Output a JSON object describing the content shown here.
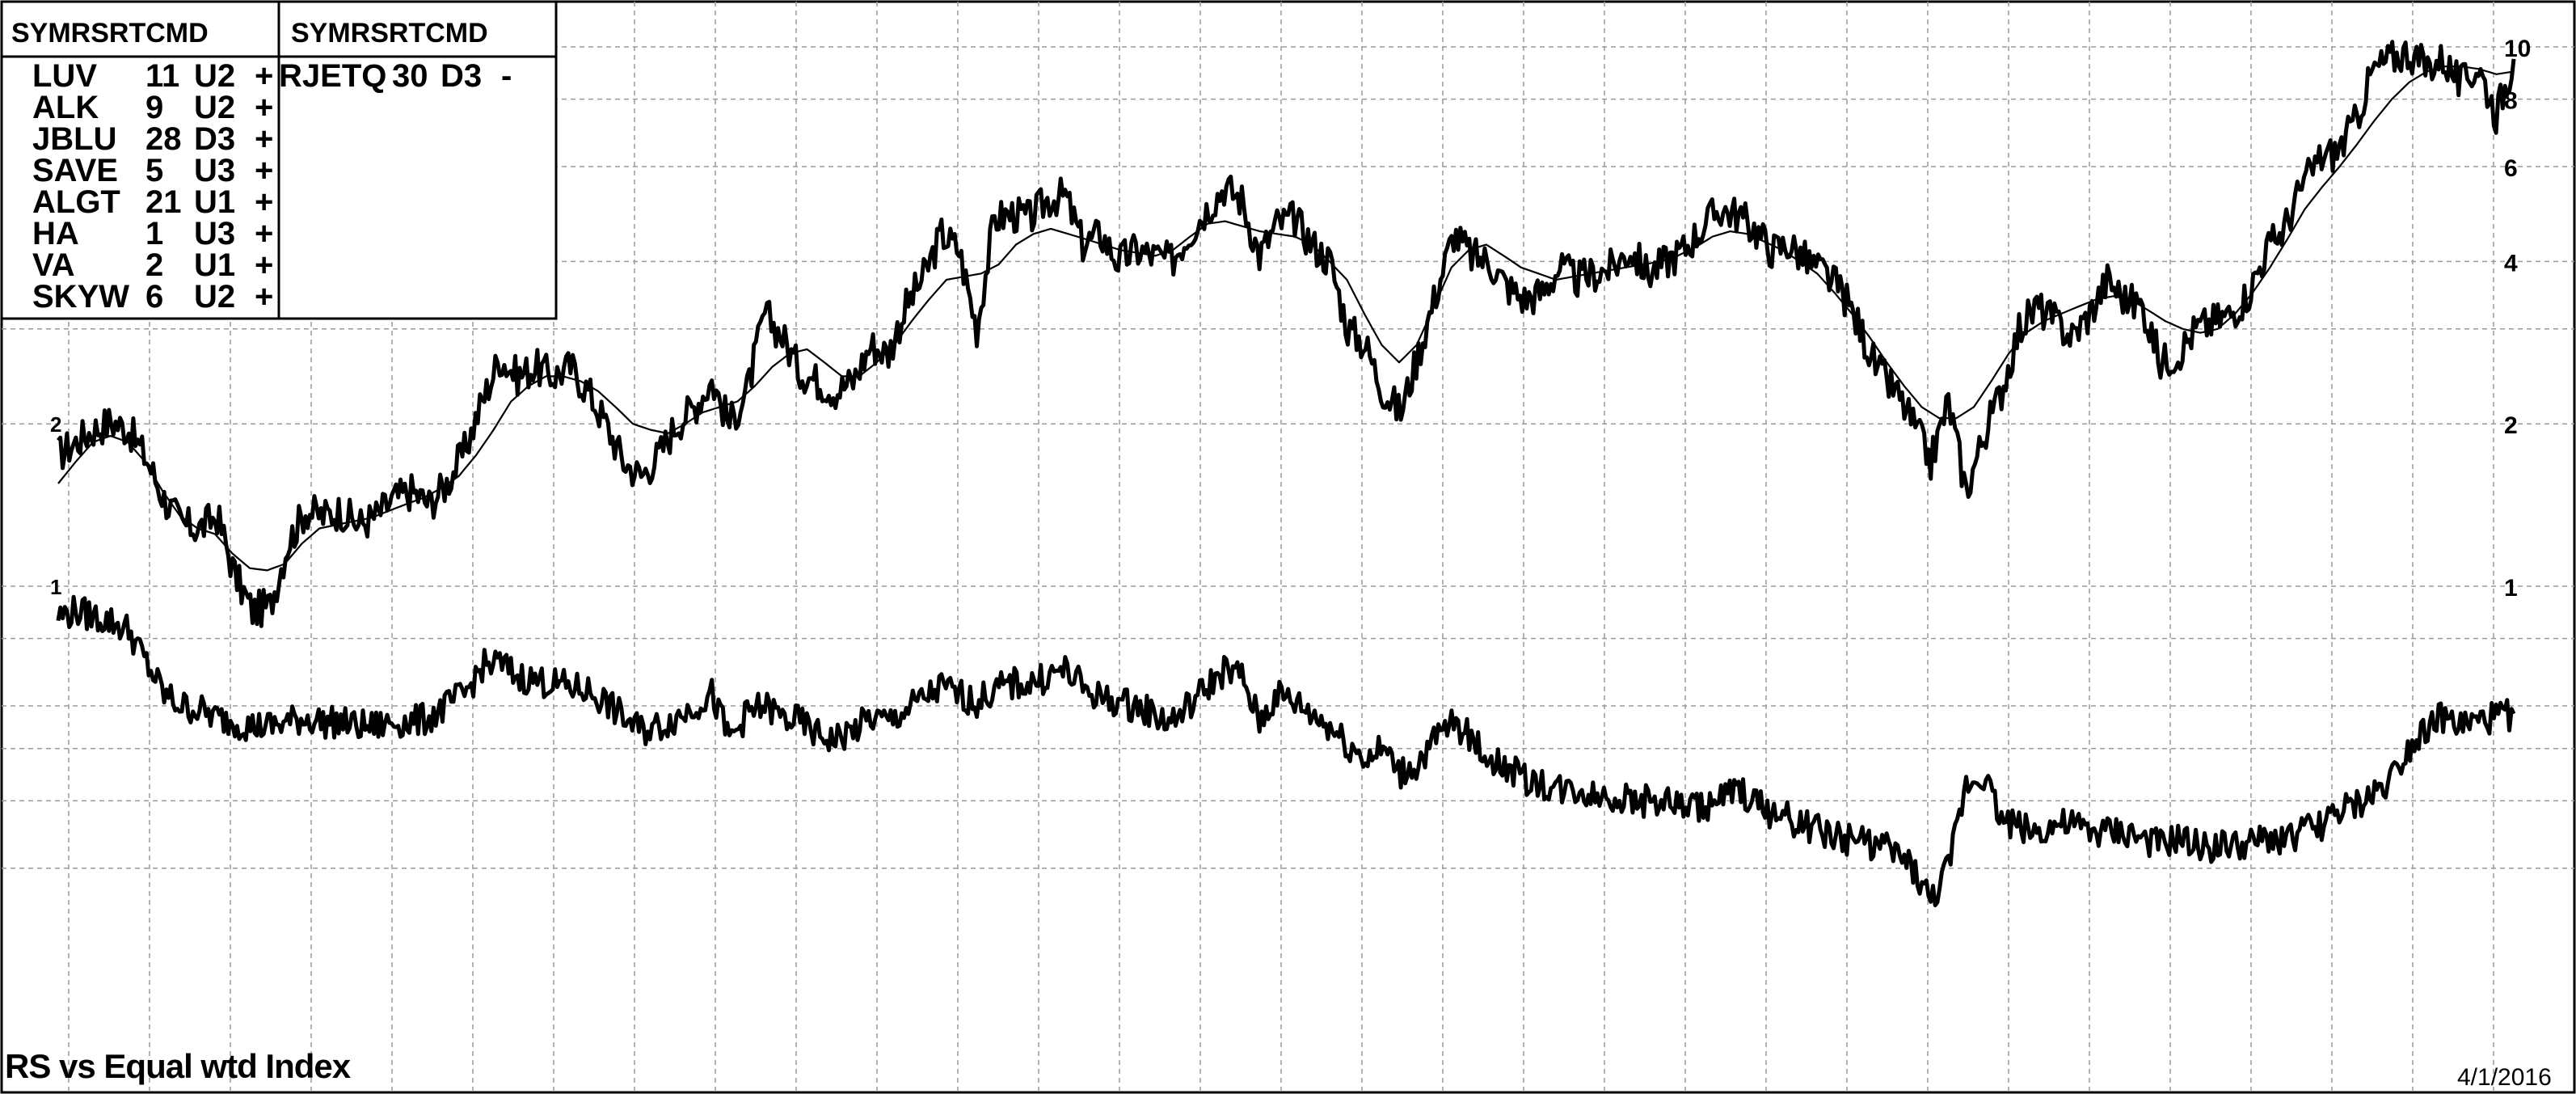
{
  "table": {
    "left_header": "SYMRSRTCMD",
    "right_header": "SYMRSRTCMD",
    "left_rows": [
      {
        "sym": "LUV",
        "rs": "11",
        "rt": "U2",
        "cmd": "+"
      },
      {
        "sym": "ALK",
        "rs": "9",
        "rt": "U2",
        "cmd": "+"
      },
      {
        "sym": "JBLU",
        "rs": "28",
        "rt": "D3",
        "cmd": "+"
      },
      {
        "sym": "SAVE",
        "rs": "5",
        "rt": "U3",
        "cmd": "+"
      },
      {
        "sym": "ALGT",
        "rs": "21",
        "rt": "U1",
        "cmd": "+"
      },
      {
        "sym": "HA",
        "rs": "1",
        "rt": "U3",
        "cmd": "+"
      },
      {
        "sym": "VA",
        "rs": "2",
        "rt": "U1",
        "cmd": "+"
      },
      {
        "sym": "SKYW",
        "rs": "6",
        "rt": "U2",
        "cmd": "+"
      }
    ],
    "right_rows": [
      {
        "sym": "RJETQ",
        "rs": "30",
        "rt": "D3",
        "cmd": "-"
      }
    ]
  },
  "footer": {
    "title": "RS vs Equal wtd Index",
    "date": "4/1/2016"
  },
  "chart_data": {
    "type": "line",
    "y_scale": "log",
    "grid": true,
    "right_axis_ticks": [
      "10",
      "8",
      "6",
      "4",
      "2",
      "1"
    ],
    "left_axis_ticks": [
      "2",
      "1"
    ],
    "end_date": "4/1/2016",
    "series": [
      {
        "values": [
          1.75,
          1.85,
          1.95,
          2.02,
          1.95,
          1.72,
          1.45,
          1.3,
          1.28,
          1.35,
          1.05,
          0.9,
          0.92,
          1.2,
          1.38,
          1.35,
          1.38,
          1.3,
          1.35,
          1.45,
          1.5,
          1.42,
          1.55,
          1.78,
          2.2,
          2.65,
          2.45,
          2.55,
          2.45,
          2.55,
          2.3,
          2.0,
          1.7,
          1.6,
          1.75,
          2.0,
          2.15,
          2.4,
          2.0,
          2.3,
          3.2,
          2.9,
          2.5,
          2.4,
          2.3,
          2.4,
          2.8,
          2.7,
          3.3,
          3.75,
          4.5,
          4.2,
          3.0,
          4.8,
          4.9,
          4.8,
          5.2,
          5.3,
          4.3,
          4.5,
          4.0,
          4.2,
          4.1,
          4.0,
          4.5,
          5.0,
          5.5,
          5.2,
          4.1,
          4.7,
          4.8,
          4.3,
          4.0,
          3.0,
          2.8,
          2.3,
          2.1,
          2.7,
          3.5,
          4.5,
          4.1,
          4.0,
          3.6,
          3.4,
          3.5,
          3.9,
          3.7,
          3.8,
          3.9,
          4.2,
          3.8,
          4.0,
          4.2,
          4.6,
          5.0,
          4.9,
          4.6,
          4.2,
          4.3,
          4.0,
          3.8,
          3.5,
          3.0,
          2.5,
          2.3,
          2.0,
          1.7,
          2.2,
          1.5,
          1.9,
          2.3,
          3.0,
          3.3,
          3.1,
          2.9,
          3.2,
          3.7,
          3.4,
          3.3,
          2.6,
          2.7,
          3.0,
          3.1,
          3.2,
          3.5,
          4.2,
          4.6,
          5.5,
          6.2,
          6.4,
          7.2,
          9.0,
          9.5,
          9.8,
          9.2,
          9.5,
          8.5,
          9.2,
          7.5,
          9.5
        ]
      },
      {
        "values": [
          1.55,
          1.7,
          1.85,
          1.9,
          1.85,
          1.7,
          1.5,
          1.35,
          1.28,
          1.25,
          1.15,
          1.08,
          1.07,
          1.1,
          1.2,
          1.28,
          1.3,
          1.32,
          1.34,
          1.38,
          1.42,
          1.46,
          1.52,
          1.6,
          1.75,
          1.95,
          2.2,
          2.35,
          2.45,
          2.45,
          2.4,
          2.3,
          2.15,
          2.0,
          1.95,
          1.92,
          2.0,
          2.1,
          2.15,
          2.2,
          2.35,
          2.55,
          2.7,
          2.75,
          2.6,
          2.45,
          2.45,
          2.6,
          2.8,
          3.1,
          3.4,
          3.7,
          3.75,
          3.8,
          3.95,
          4.3,
          4.5,
          4.6,
          4.5,
          4.4,
          4.3,
          4.2,
          4.15,
          4.1,
          4.2,
          4.45,
          4.7,
          4.75,
          4.65,
          4.55,
          4.5,
          4.45,
          4.3,
          4.0,
          3.7,
          3.2,
          2.8,
          2.6,
          2.8,
          3.3,
          3.9,
          4.2,
          4.3,
          4.1,
          3.9,
          3.8,
          3.7,
          3.75,
          3.8,
          3.85,
          3.9,
          3.95,
          4.0,
          4.1,
          4.25,
          4.45,
          4.55,
          4.5,
          4.35,
          4.2,
          4.0,
          3.8,
          3.5,
          3.2,
          2.9,
          2.6,
          2.35,
          2.15,
          2.05,
          2.05,
          2.15,
          2.4,
          2.7,
          2.95,
          3.1,
          3.2,
          3.3,
          3.4,
          3.45,
          3.4,
          3.25,
          3.1,
          3.0,
          2.95,
          3.0,
          3.2,
          3.5,
          3.9,
          4.4,
          5.0,
          5.5,
          6.0,
          6.6,
          7.3,
          8.0,
          8.6,
          9.0,
          9.2,
          9.2,
          9.1,
          8.9,
          9.0
        ]
      },
      {
        "values": [
          0.88,
          0.9,
          0.88,
          0.86,
          0.83,
          0.72,
          0.63,
          0.6,
          0.59,
          0.57,
          0.56,
          0.55,
          0.55,
          0.56,
          0.57,
          0.56,
          0.56,
          0.55,
          0.55,
          0.56,
          0.56,
          0.57,
          0.6,
          0.63,
          0.71,
          0.72,
          0.68,
          0.67,
          0.66,
          0.65,
          0.64,
          0.61,
          0.57,
          0.54,
          0.55,
          0.57,
          0.6,
          0.63,
          0.52,
          0.58,
          0.6,
          0.57,
          0.56,
          0.53,
          0.52,
          0.54,
          0.57,
          0.56,
          0.59,
          0.62,
          0.65,
          0.63,
          0.61,
          0.64,
          0.66,
          0.66,
          0.68,
          0.7,
          0.65,
          0.62,
          0.61,
          0.6,
          0.58,
          0.56,
          0.6,
          0.65,
          0.7,
          0.68,
          0.56,
          0.63,
          0.61,
          0.58,
          0.55,
          0.51,
          0.48,
          0.5,
          0.45,
          0.47,
          0.52,
          0.56,
          0.52,
          0.48,
          0.46,
          0.44,
          0.43,
          0.42,
          0.42,
          0.41,
          0.41,
          0.4,
          0.4,
          0.4,
          0.39,
          0.39,
          0.4,
          0.42,
          0.4,
          0.38,
          0.37,
          0.36,
          0.35,
          0.34,
          0.34,
          0.33,
          0.32,
          0.3,
          0.26,
          0.3,
          0.43,
          0.45,
          0.37,
          0.36,
          0.35,
          0.36,
          0.36,
          0.35,
          0.35,
          0.35,
          0.34,
          0.33,
          0.34,
          0.33,
          0.33,
          0.33,
          0.33,
          0.34,
          0.34,
          0.35,
          0.36,
          0.38,
          0.39,
          0.41,
          0.44,
          0.5,
          0.55,
          0.57,
          0.55,
          0.56,
          0.57,
          0.58
        ]
      }
    ]
  }
}
